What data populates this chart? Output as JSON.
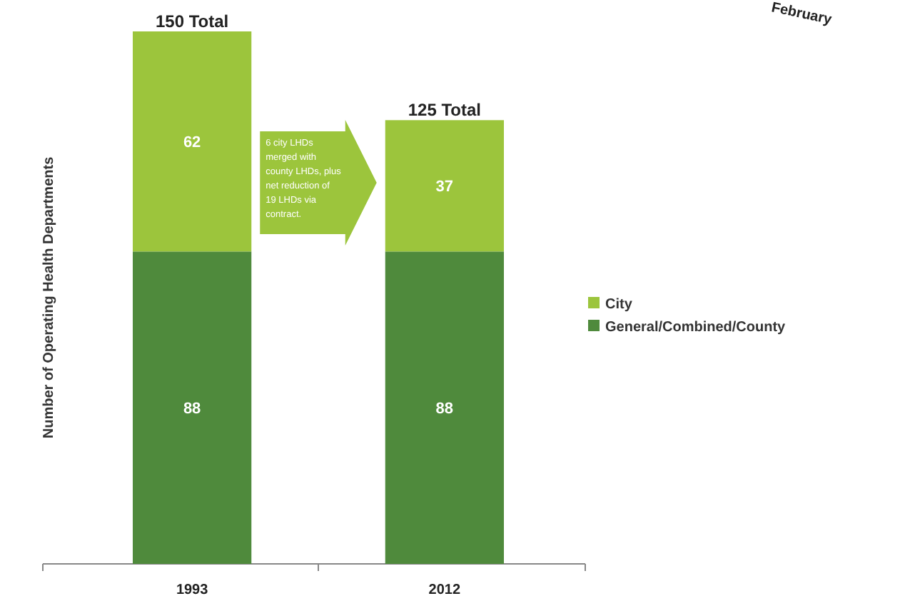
{
  "chart_data": {
    "type": "bar",
    "stacked": true,
    "ylabel": "Number of Operating Health Departments",
    "categories": [
      "1993",
      "2012"
    ],
    "series": [
      {
        "name": "General/Combined/County",
        "color": "#4f8a3c",
        "values": [
          88,
          88
        ]
      },
      {
        "name": "City",
        "color": "#9cc53c",
        "values": [
          62,
          37
        ]
      }
    ],
    "data_labels": true,
    "totals": [
      "150 Total",
      "125 Total"
    ],
    "legend": "right",
    "annotations": [
      "6 city LHDs merged with county LHDs, plus net reduction of 19 LHDs via contract.",
      "February"
    ]
  }
}
